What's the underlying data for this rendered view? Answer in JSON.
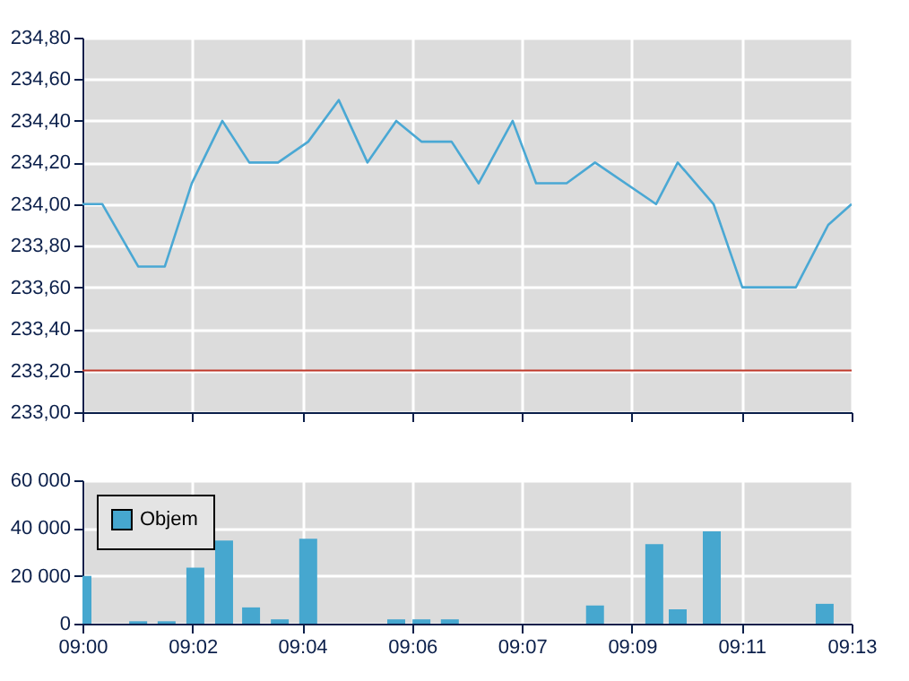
{
  "chart_data": [
    {
      "type": "line",
      "x": [
        9.0,
        9.0056,
        9.0157,
        9.0232,
        9.0308,
        9.0394,
        9.047,
        9.0551,
        9.0636,
        9.0722,
        9.0803,
        9.0884,
        9.0955,
        9.104,
        9.1116,
        9.1212,
        9.1278,
        9.1364,
        9.1444,
        9.1616,
        9.1677,
        9.1778,
        9.1859,
        9.201,
        9.2101,
        9.2167
      ],
      "series": [
        {
          "color": "#4aa8d4",
          "values": [
            234.0,
            234.0,
            233.7,
            233.7,
            234.1,
            234.4,
            234.2,
            234.2,
            234.3,
            234.5,
            234.2,
            234.4,
            234.3,
            234.3,
            234.1,
            234.4,
            234.1,
            234.1,
            234.2,
            234.0,
            234.2,
            234.0,
            233.6,
            233.6,
            233.9,
            234.0
          ]
        }
      ],
      "xlim": [
        9.0,
        9.2167
      ],
      "xticks": [
        {
          "value": 9.0,
          "label": null
        },
        {
          "value": 9.031,
          "label": null
        },
        {
          "value": 9.0619,
          "label": null
        },
        {
          "value": 9.0929,
          "label": null
        },
        {
          "value": 9.1238,
          "label": null
        },
        {
          "value": 9.1548,
          "label": null
        },
        {
          "value": 9.1857,
          "label": null
        },
        {
          "value": 9.2167,
          "label": null
        }
      ],
      "ylim": [
        233.0,
        234.8
      ],
      "yticks": [
        {
          "value": 233.0,
          "label": "233,00"
        },
        {
          "value": 233.2,
          "label": "233,20"
        },
        {
          "value": 233.4,
          "label": "233,40"
        },
        {
          "value": 233.6,
          "label": "233,60"
        },
        {
          "value": 233.8,
          "label": "233,80"
        },
        {
          "value": 234.0,
          "label": "234,00"
        },
        {
          "value": 234.2,
          "label": "234,20"
        },
        {
          "value": 234.4,
          "label": "234,40"
        },
        {
          "value": 234.6,
          "label": "234,60"
        },
        {
          "value": 234.8,
          "label": "234,80"
        }
      ],
      "ref_lines": [
        {
          "axis": "y",
          "value": 233.2,
          "color": "#c0392b"
        }
      ],
      "grid": true,
      "tick_labels": "y"
    },
    {
      "type": "bar",
      "x": [
        9.0,
        9.0157,
        9.0237,
        9.0318,
        9.0399,
        9.0475,
        9.0556,
        9.0636,
        9.0884,
        9.0955,
        9.1035,
        9.1444,
        9.1611,
        9.1677,
        9.1773,
        9.2091
      ],
      "series": [
        {
          "name": "Objem",
          "color": "#46a7cf",
          "values": [
            20000,
            1000,
            1000,
            23400,
            34800,
            6800,
            1800,
            35500,
            1800,
            1800,
            1800,
            7600,
            33300,
            6000,
            38600,
            8300
          ]
        }
      ],
      "xlim": [
        9.0,
        9.2167
      ],
      "xticks": [
        {
          "value": 9.0,
          "label": "09:00"
        },
        {
          "value": 9.031,
          "label": "09:02"
        },
        {
          "value": 9.0619,
          "label": "09:04"
        },
        {
          "value": 9.0929,
          "label": "09:06"
        },
        {
          "value": 9.1238,
          "label": "09:07"
        },
        {
          "value": 9.1548,
          "label": "09:09"
        },
        {
          "value": 9.1857,
          "label": "09:11"
        },
        {
          "value": 9.2167,
          "label": "09:13"
        }
      ],
      "ylim": [
        0,
        60000
      ],
      "yticks": [
        0,
        {
          "value": 20000,
          "label": "20 000"
        },
        {
          "value": 40000,
          "label": "40 000"
        },
        {
          "value": 60000,
          "label": "60 000"
        }
      ],
      "grid": true,
      "legend": "top left"
    }
  ]
}
